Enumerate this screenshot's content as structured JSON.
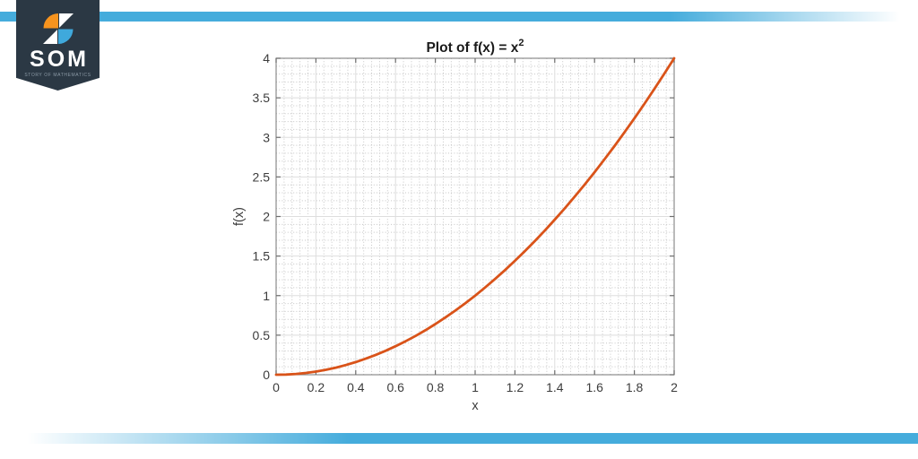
{
  "branding": {
    "logo": {
      "acronym": "SOM",
      "tagline": "STORY OF MATHEMATICS"
    },
    "colors": {
      "banner": "#2b3844",
      "accent_blue": "#45acdc",
      "icon_orange": "#f7941e",
      "icon_blue": "#3fa9dc",
      "icon_white": "#ffffff"
    }
  },
  "chart_data": {
    "type": "line",
    "title": {
      "text": "Plot of f(x) = x",
      "superscript": "2"
    },
    "xlabel": "x",
    "ylabel": "f(x)",
    "xlim": [
      0,
      2
    ],
    "ylim": [
      0,
      4
    ],
    "xticks": [
      0,
      0.2,
      0.4,
      0.6,
      0.8,
      1,
      1.2,
      1.4,
      1.6,
      1.8,
      2
    ],
    "xtick_labels": [
      "0",
      "0.2",
      "0.4",
      "0.6",
      "0.8",
      "1",
      "1.2",
      "1.4",
      "1.6",
      "1.8",
      "2"
    ],
    "yticks": [
      0,
      0.5,
      1,
      1.5,
      2,
      2.5,
      3,
      3.5,
      4
    ],
    "ytick_labels": [
      "0",
      "0.5",
      "1",
      "1.5",
      "2",
      "2.5",
      "3",
      "3.5",
      "4"
    ],
    "grid": true,
    "minor_grid": true,
    "minor_x_step": 0.04,
    "minor_y_step": 0.1,
    "legend": null,
    "series": [
      {
        "name": "f(x) = x^2",
        "color": "#d95319",
        "x": [
          0,
          0.05,
          0.1,
          0.15,
          0.2,
          0.25,
          0.3,
          0.35,
          0.4,
          0.45,
          0.5,
          0.55,
          0.6,
          0.65,
          0.7,
          0.75,
          0.8,
          0.85,
          0.9,
          0.95,
          1,
          1.05,
          1.1,
          1.15,
          1.2,
          1.25,
          1.3,
          1.35,
          1.4,
          1.45,
          1.5,
          1.55,
          1.6,
          1.65,
          1.7,
          1.75,
          1.8,
          1.85,
          1.9,
          1.95,
          2
        ],
        "y": [
          0,
          0.0025,
          0.01,
          0.0225,
          0.04,
          0.0625,
          0.09,
          0.1225,
          0.16,
          0.2025,
          0.25,
          0.3025,
          0.36,
          0.4225,
          0.49,
          0.5625,
          0.64,
          0.7225,
          0.81,
          0.9025,
          1,
          1.1025,
          1.21,
          1.3225,
          1.44,
          1.5625,
          1.69,
          1.8225,
          1.96,
          2.1025,
          2.25,
          2.4025,
          2.56,
          2.7225,
          2.89,
          3.0625,
          3.24,
          3.4225,
          3.61,
          3.8025,
          4
        ]
      }
    ],
    "style": {
      "axis_color": "#8c8c8c",
      "tick_color": "#6e6e6e",
      "tick_label_color": "#3c3c3c",
      "title_color": "#1a1a1a",
      "major_grid_color": "#dedede",
      "minor_grid_color": "#c6c6c6"
    }
  }
}
